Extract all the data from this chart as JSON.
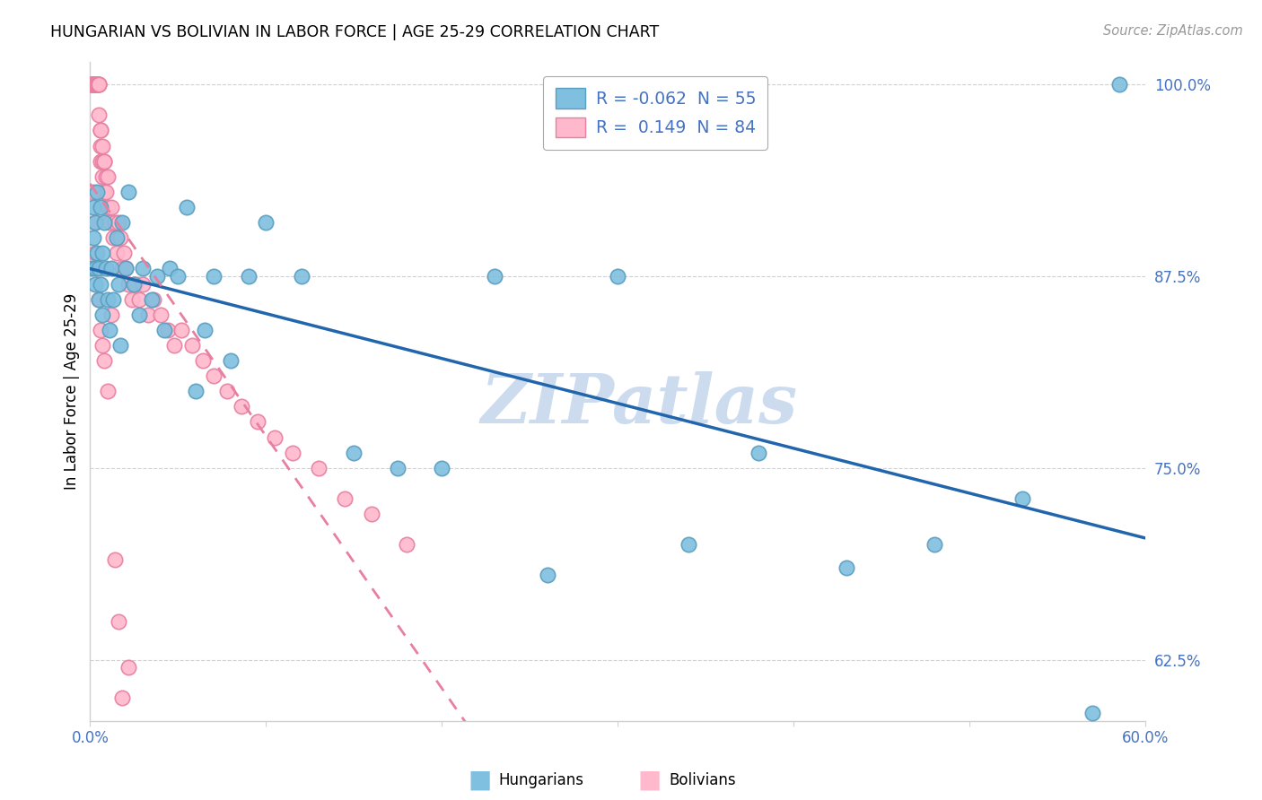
{
  "title": "HUNGARIAN VS BOLIVIAN IN LABOR FORCE | AGE 25-29 CORRELATION CHART",
  "source": "Source: ZipAtlas.com",
  "ylabel": "In Labor Force | Age 25-29",
  "xlim": [
    0.0,
    0.6
  ],
  "ylim": [
    0.585,
    1.015
  ],
  "yticks": [
    0.625,
    0.75,
    0.875,
    1.0
  ],
  "ytick_labels": [
    "62.5%",
    "75.0%",
    "87.5%",
    "100.0%"
  ],
  "legend_r_hungarian": "-0.062",
  "legend_n_hungarian": "55",
  "legend_r_bolivian": "0.149",
  "legend_n_bolivian": "84",
  "hungarian_color": "#7fbfdf",
  "hungarian_edge": "#5a9ec0",
  "bolivian_color": "#ffb8cc",
  "bolivian_edge": "#e87fa0",
  "trend_hungarian_color": "#2166ac",
  "trend_bolivian_color": "#e87fa0",
  "axis_color": "#4472c4",
  "grid_color": "#d0d0d0",
  "watermark_color": "#ccdcee",
  "hu_x": [
    0.001,
    0.002,
    0.002,
    0.003,
    0.003,
    0.003,
    0.004,
    0.004,
    0.005,
    0.005,
    0.006,
    0.006,
    0.007,
    0.007,
    0.008,
    0.009,
    0.01,
    0.011,
    0.012,
    0.013,
    0.015,
    0.016,
    0.017,
    0.018,
    0.02,
    0.022,
    0.025,
    0.028,
    0.03,
    0.035,
    0.038,
    0.042,
    0.045,
    0.05,
    0.055,
    0.06,
    0.065,
    0.07,
    0.08,
    0.09,
    0.1,
    0.12,
    0.15,
    0.175,
    0.2,
    0.23,
    0.26,
    0.3,
    0.34,
    0.38,
    0.43,
    0.48,
    0.53,
    0.57,
    0.585
  ],
  "hu_y": [
    0.88,
    0.92,
    0.9,
    0.91,
    0.88,
    0.87,
    0.93,
    0.89,
    0.86,
    0.88,
    0.92,
    0.87,
    0.89,
    0.85,
    0.91,
    0.88,
    0.86,
    0.84,
    0.88,
    0.86,
    0.9,
    0.87,
    0.83,
    0.91,
    0.88,
    0.93,
    0.87,
    0.85,
    0.88,
    0.86,
    0.875,
    0.84,
    0.88,
    0.875,
    0.92,
    0.8,
    0.84,
    0.875,
    0.82,
    0.875,
    0.91,
    0.875,
    0.76,
    0.75,
    0.75,
    0.875,
    0.68,
    0.875,
    0.7,
    0.76,
    0.685,
    0.7,
    0.73,
    0.59,
    1.0
  ],
  "bo_x": [
    0.001,
    0.001,
    0.001,
    0.001,
    0.002,
    0.002,
    0.002,
    0.002,
    0.002,
    0.003,
    0.003,
    0.003,
    0.003,
    0.003,
    0.003,
    0.004,
    0.004,
    0.004,
    0.004,
    0.005,
    0.005,
    0.005,
    0.005,
    0.006,
    0.006,
    0.006,
    0.006,
    0.007,
    0.007,
    0.007,
    0.008,
    0.008,
    0.008,
    0.009,
    0.009,
    0.01,
    0.01,
    0.011,
    0.012,
    0.013,
    0.014,
    0.015,
    0.016,
    0.017,
    0.018,
    0.019,
    0.02,
    0.022,
    0.024,
    0.026,
    0.028,
    0.03,
    0.033,
    0.036,
    0.04,
    0.044,
    0.048,
    0.052,
    0.058,
    0.064,
    0.07,
    0.078,
    0.086,
    0.095,
    0.105,
    0.115,
    0.13,
    0.145,
    0.16,
    0.18,
    0.002,
    0.003,
    0.003,
    0.004,
    0.005,
    0.006,
    0.007,
    0.008,
    0.01,
    0.012,
    0.014,
    0.016,
    0.018,
    0.022
  ],
  "bo_y": [
    1.0,
    1.0,
    1.0,
    1.0,
    1.0,
    1.0,
    1.0,
    1.0,
    1.0,
    1.0,
    1.0,
    1.0,
    1.0,
    1.0,
    1.0,
    1.0,
    1.0,
    1.0,
    1.0,
    1.0,
    1.0,
    1.0,
    0.98,
    0.97,
    0.96,
    0.95,
    0.97,
    0.95,
    0.94,
    0.96,
    0.95,
    0.93,
    0.95,
    0.94,
    0.93,
    0.92,
    0.94,
    0.91,
    0.92,
    0.9,
    0.91,
    0.89,
    0.91,
    0.9,
    0.88,
    0.89,
    0.88,
    0.87,
    0.86,
    0.87,
    0.86,
    0.87,
    0.85,
    0.86,
    0.85,
    0.84,
    0.83,
    0.84,
    0.83,
    0.82,
    0.81,
    0.8,
    0.79,
    0.78,
    0.77,
    0.76,
    0.75,
    0.73,
    0.72,
    0.7,
    0.93,
    0.91,
    0.89,
    0.88,
    0.86,
    0.84,
    0.83,
    0.82,
    0.8,
    0.85,
    0.69,
    0.65,
    0.6,
    0.62
  ]
}
